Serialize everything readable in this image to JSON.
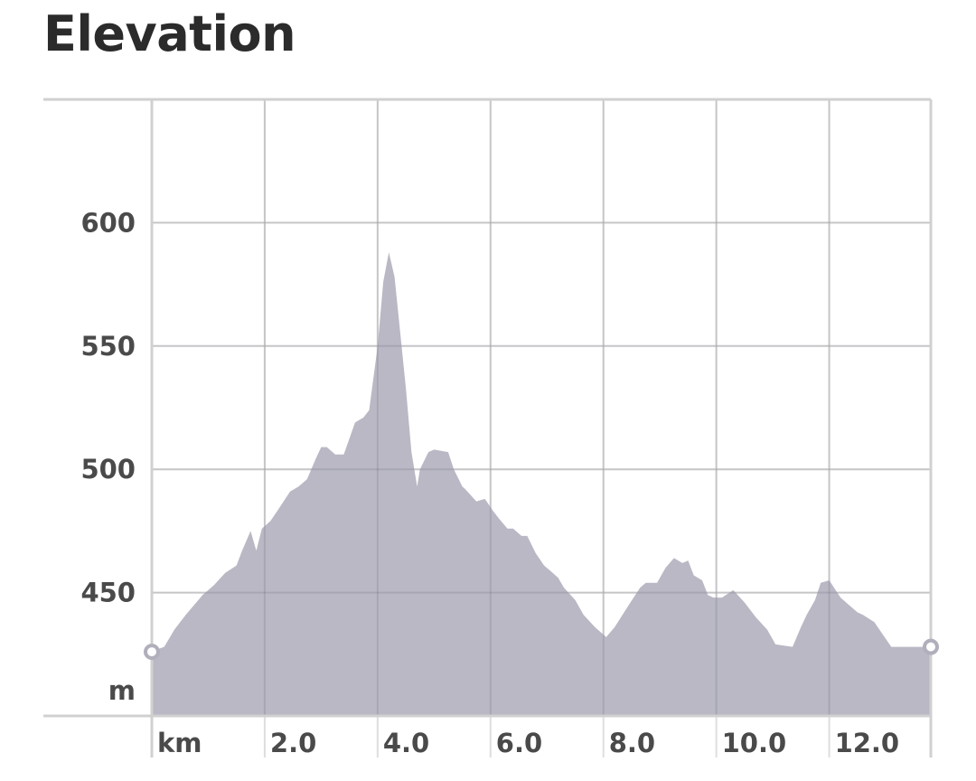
{
  "title": "Elevation",
  "chart_data": {
    "type": "area",
    "x_unit": "km",
    "y_unit": "m",
    "xlim": [
      0,
      13.8
    ],
    "ylim": [
      400,
      650
    ],
    "y_ticks": [
      450,
      500,
      550,
      600
    ],
    "x_ticks": [
      2.0,
      4.0,
      6.0,
      8.0,
      10.0,
      12.0
    ],
    "x_tick_labels": [
      "2.0",
      "4.0",
      "6.0",
      "8.0",
      "10.0",
      "12.0"
    ],
    "grid": true,
    "fill_color": "#b9b8c4",
    "grid_color": "#dedede",
    "x": [
      0.0,
      0.1,
      0.22,
      0.4,
      0.6,
      0.9,
      1.1,
      1.3,
      1.5,
      1.6,
      1.75,
      1.85,
      1.95,
      2.1,
      2.25,
      2.45,
      2.6,
      2.75,
      2.9,
      3.0,
      3.1,
      3.25,
      3.4,
      3.6,
      3.75,
      3.85,
      4.0,
      4.1,
      4.2,
      4.3,
      4.5,
      4.6,
      4.7,
      4.75,
      4.9,
      5.0,
      5.25,
      5.35,
      5.5,
      5.55,
      5.75,
      5.9,
      6.05,
      6.15,
      6.3,
      6.4,
      6.55,
      6.65,
      6.8,
      6.95,
      7.05,
      7.2,
      7.3,
      7.5,
      7.65,
      7.85,
      8.05,
      8.2,
      8.45,
      8.65,
      8.75,
      8.95,
      9.1,
      9.25,
      9.4,
      9.5,
      9.6,
      9.75,
      9.85,
      9.95,
      10.1,
      10.3,
      10.5,
      10.7,
      10.9,
      11.05,
      11.35,
      11.5,
      11.6,
      11.75,
      11.85,
      12.0,
      12.2,
      12.35,
      12.5,
      12.6,
      12.8,
      12.95,
      13.1,
      13.3,
      13.5,
      13.65,
      13.8
    ],
    "y": [
      426,
      427,
      428,
      435,
      441,
      449,
      453,
      458,
      461,
      467,
      475,
      467,
      476,
      479,
      484,
      491,
      493,
      496,
      504,
      509,
      509,
      506,
      506,
      519,
      521,
      524,
      550,
      576,
      588,
      578,
      533,
      507,
      493,
      500,
      507,
      508,
      507,
      500,
      493,
      492,
      487,
      488,
      483,
      480,
      476,
      476,
      473,
      473,
      466,
      461,
      459,
      456,
      452,
      447,
      441,
      436,
      432,
      436,
      445,
      452,
      454,
      454,
      460,
      464,
      462,
      463,
      457,
      455,
      449,
      448,
      448,
      451,
      446,
      440,
      435,
      429,
      428,
      436,
      441,
      447,
      454,
      455,
      448,
      445,
      442,
      441,
      438,
      433,
      428,
      428,
      428,
      428,
      428
    ]
  }
}
